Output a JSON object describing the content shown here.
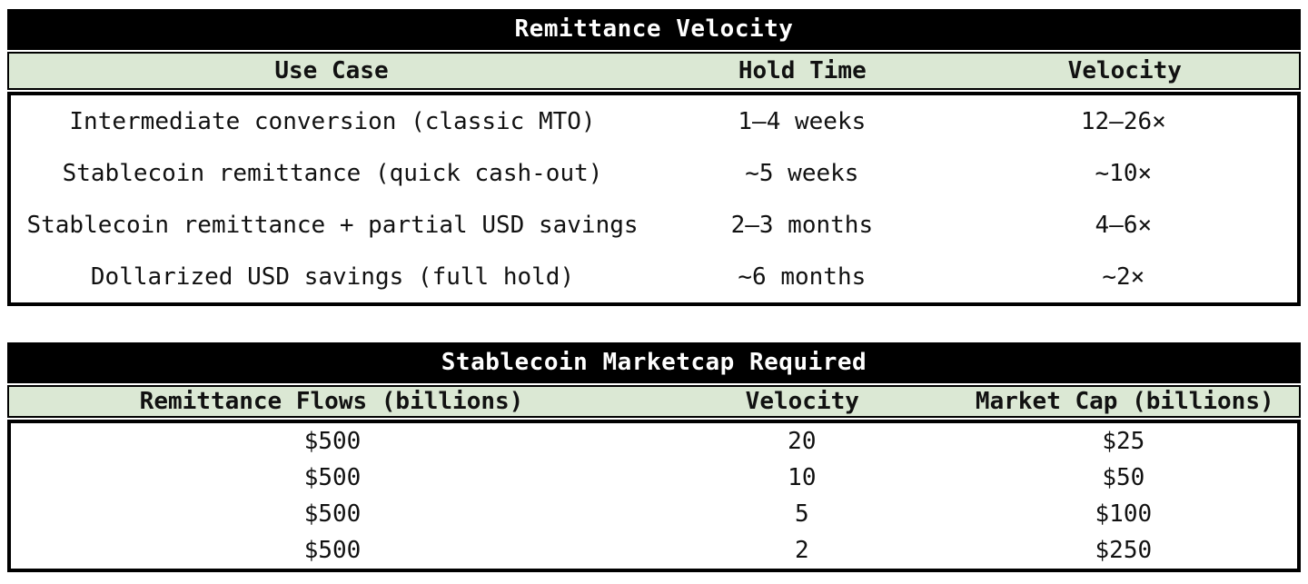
{
  "chart_data": [
    {
      "type": "table",
      "title": "Remittance Velocity",
      "columns": [
        "Use Case",
        "Hold Time",
        "Velocity"
      ],
      "rows": [
        [
          "Intermediate conversion (classic MTO)",
          "1–4 weeks",
          "12–26×"
        ],
        [
          "Stablecoin remittance (quick cash-out)",
          "~5 weeks",
          "~10×"
        ],
        [
          "Stablecoin remittance + partial USD savings",
          "2–3 months",
          "4–6×"
        ],
        [
          "Dollarized USD savings (full hold)",
          "~6 months",
          "~2×"
        ]
      ]
    },
    {
      "type": "table",
      "title": "Stablecoin Marketcap Required",
      "columns": [
        "Remittance Flows (billions)",
        "Velocity",
        "Market Cap (billions)"
      ],
      "rows": [
        [
          "$500",
          "20",
          "$25"
        ],
        [
          "$500",
          "10",
          "$50"
        ],
        [
          "$500",
          "5",
          "$100"
        ],
        [
          "$500",
          "2",
          "$250"
        ]
      ]
    }
  ],
  "colors": {
    "title_bar_bg": "#000000",
    "title_bar_fg": "#ffffff",
    "header_row_bg": "#dbe8d4",
    "border": "#000000",
    "body_bg": "#ffffff"
  }
}
